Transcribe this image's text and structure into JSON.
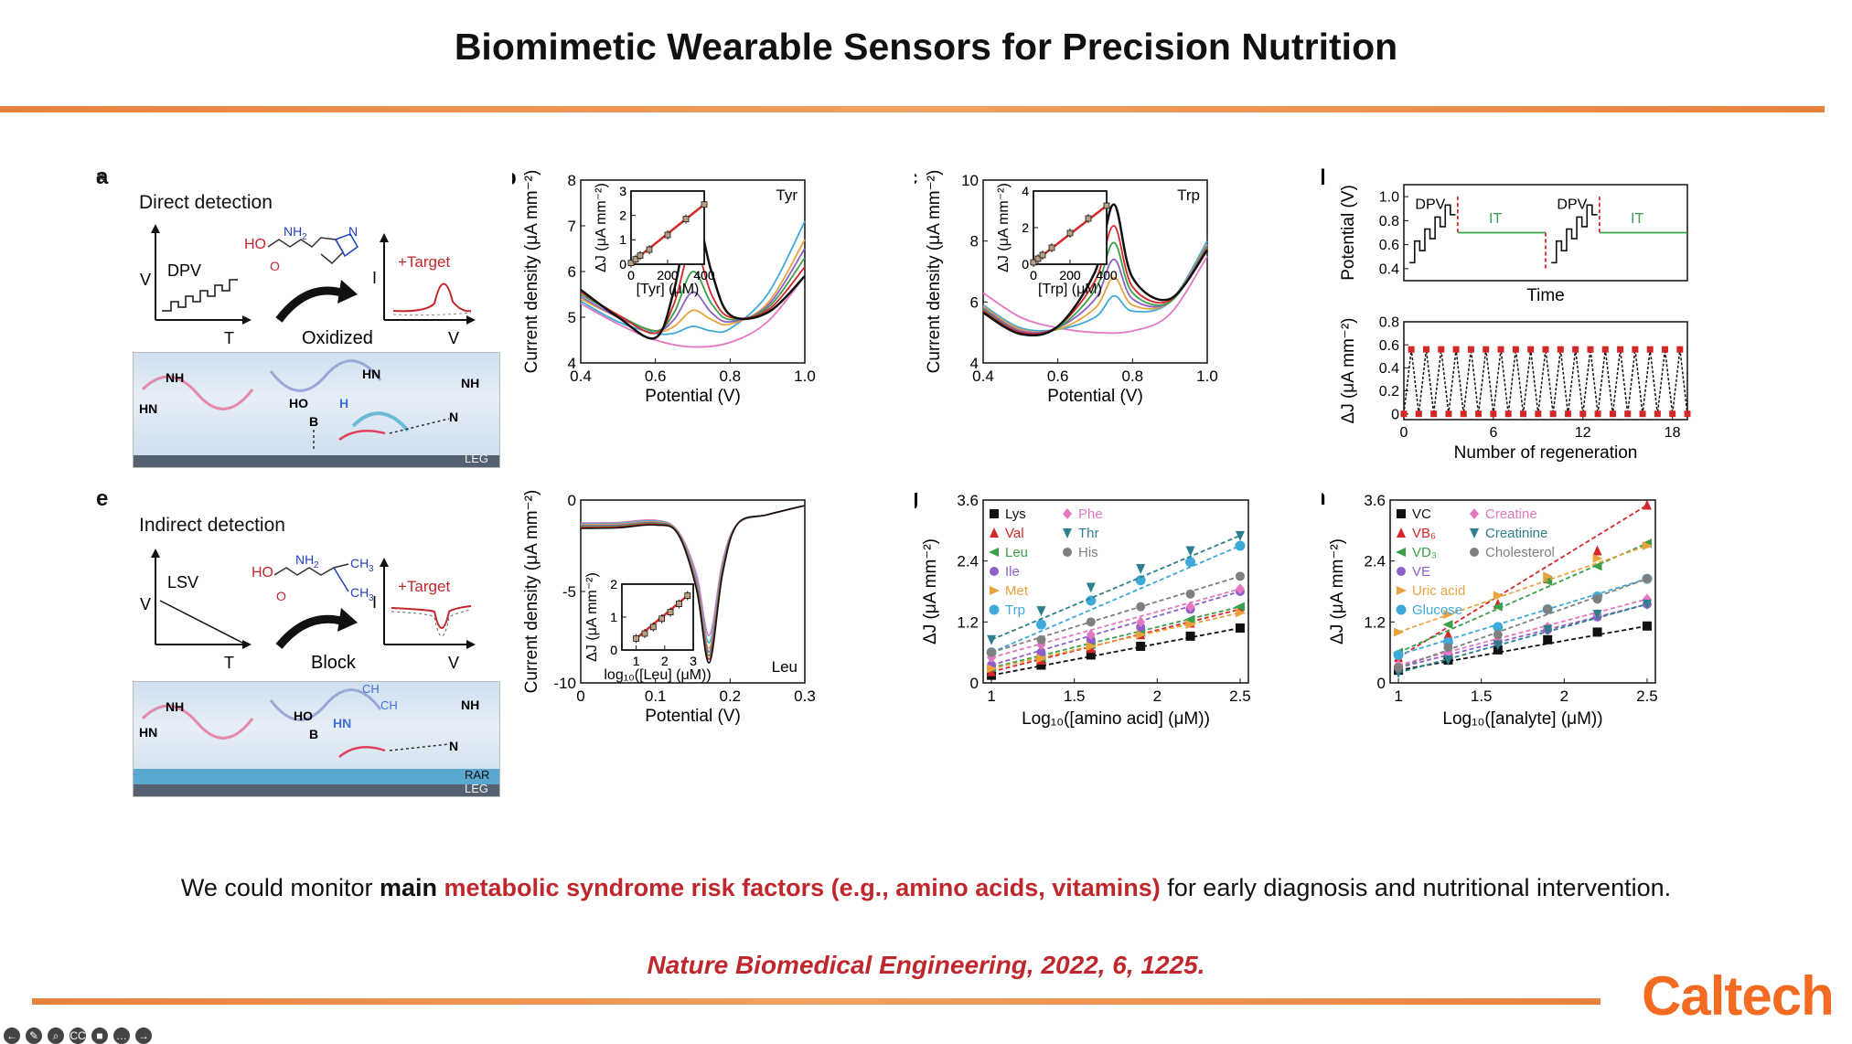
{
  "slide": {
    "title": "Biomimetic Wearable Sensors for Precision Nutrition",
    "caption_pre": "We could monitor ",
    "caption_bold": "main",
    "caption_highlight": "metabolic syndrome risk factors (e.g., amino acids, vitamins)",
    "caption_post": " for early diagnosis and nutritional intervention.",
    "citation": "Nature Biomedical Engineering, 2022, 6, 1225.",
    "logo": "Caltech",
    "colors": {
      "accent_orange": "#e8823a",
      "highlight_red": "#c0272d",
      "logo_orange": "#f26b21"
    }
  },
  "panels": {
    "a": {
      "label": "a",
      "heading": "Direct detection",
      "technique": "DPV",
      "axis_v": "V",
      "axis_t": "T",
      "axis_i": "I",
      "axis_v2": "V",
      "target": "+Target",
      "action": "Oxidized",
      "mol_nh2": "NH",
      "mol_nh2_sub": "2",
      "mol_ho": "HO",
      "mol_o": "O",
      "mol_n": "N",
      "rec_nh": "NH",
      "rec_hn": "HN",
      "rec_hn2": "HN",
      "rec_ho": "HO",
      "rec_b": "B",
      "rec_h": "H",
      "rec_n": "N",
      "substrate": "LEG"
    },
    "e": {
      "label": "e",
      "heading": "Indirect detection",
      "technique": "LSV",
      "axis_v": "V",
      "axis_t": "T",
      "axis_i": "I",
      "axis_v2": "V",
      "target": "+Target",
      "action": "Block",
      "mol_nh2": "NH",
      "mol_nh2_sub": "2",
      "mol_ho": "HO",
      "mol_o": "O",
      "mol_ch3a": "CH",
      "mol_ch3b": "CH",
      "mol_sub3": "3",
      "rec_nh": "NH",
      "rec_hn": "HN",
      "rec_hn2": "HN",
      "rec_ho": "HO",
      "rec_b": "B",
      "rec_n": "N",
      "rec_ch3": "CH",
      "rec_ch3b": "CH",
      "substrate_1": "RAR",
      "substrate_2": "LEG"
    }
  },
  "chart_data": [
    {
      "id": "b",
      "type": "line",
      "label": "b",
      "tag": "Tyr",
      "xlabel": "Potential (V)",
      "ylabel": "Current density (μA mm⁻²)",
      "xlim": [
        0.4,
        1.0
      ],
      "ylim": [
        4,
        8
      ],
      "xticks": [
        "0.4",
        "0.6",
        "0.8",
        "1.0"
      ],
      "yticks": [
        "4",
        "5",
        "6",
        "7",
        "8"
      ],
      "series": [
        {
          "color": "#e377c2",
          "x": [
            0.4,
            0.5,
            0.6,
            0.7,
            0.8,
            0.9,
            1.0
          ],
          "y": [
            5.3,
            4.85,
            4.5,
            4.35,
            4.45,
            4.9,
            5.9
          ]
        },
        {
          "color": "#3fa9d8",
          "x": [
            0.4,
            0.5,
            0.6,
            0.65,
            0.7,
            0.75,
            0.8,
            0.9,
            1.0
          ],
          "y": [
            5.35,
            4.9,
            4.65,
            4.65,
            4.8,
            4.7,
            4.75,
            5.5,
            7.1
          ]
        },
        {
          "color": "#e8a33d",
          "x": [
            0.4,
            0.5,
            0.6,
            0.65,
            0.7,
            0.75,
            0.8,
            0.9,
            1.0
          ],
          "y": [
            5.4,
            5.0,
            4.7,
            4.8,
            5.15,
            4.95,
            4.85,
            5.3,
            6.7
          ]
        },
        {
          "color": "#8e5fc7",
          "x": [
            0.4,
            0.5,
            0.6,
            0.65,
            0.7,
            0.75,
            0.8,
            0.9,
            1.0
          ],
          "y": [
            5.45,
            5.0,
            4.7,
            4.95,
            5.55,
            5.1,
            4.9,
            5.25,
            6.5
          ]
        },
        {
          "color": "#3aa04a",
          "x": [
            0.4,
            0.5,
            0.6,
            0.65,
            0.7,
            0.75,
            0.8,
            0.9,
            1.0
          ],
          "y": [
            5.5,
            5.05,
            4.7,
            5.1,
            6.0,
            5.3,
            4.95,
            5.2,
            6.3
          ]
        },
        {
          "color": "#d62728",
          "x": [
            0.4,
            0.5,
            0.6,
            0.65,
            0.7,
            0.75,
            0.8,
            0.9,
            1.0
          ],
          "y": [
            5.55,
            5.05,
            4.65,
            5.3,
            6.6,
            5.5,
            5.0,
            5.15,
            6.1
          ]
        },
        {
          "color": "#111111",
          "x": [
            0.4,
            0.5,
            0.6,
            0.65,
            0.7,
            0.75,
            0.8,
            0.9,
            1.0
          ],
          "y": [
            5.6,
            5.0,
            4.55,
            5.6,
            7.4,
            6.0,
            5.05,
            5.1,
            5.9
          ]
        }
      ],
      "inset": {
        "xlabel": "[Tyr] (μM)",
        "ylabel": "ΔJ (μA mm⁻²)",
        "xlim": [
          0,
          400
        ],
        "ylim": [
          0,
          3
        ],
        "xticks": [
          "0",
          "200",
          "400"
        ],
        "yticks": [
          "0",
          "1",
          "2",
          "3"
        ],
        "x": [
          0,
          25,
          50,
          100,
          200,
          300,
          400
        ],
        "y": [
          0.05,
          0.2,
          0.35,
          0.6,
          1.2,
          1.85,
          2.45
        ]
      }
    },
    {
      "id": "c",
      "type": "line",
      "label": "c",
      "tag": "Trp",
      "xlabel": "Potential (V)",
      "ylabel": "Current density (μA mm⁻²)",
      "xlim": [
        0.4,
        1.0
      ],
      "ylim": [
        4,
        10
      ],
      "xticks": [
        "0.4",
        "0.6",
        "0.8",
        "1.0"
      ],
      "yticks": [
        "4",
        "6",
        "8",
        "10"
      ],
      "series": [
        {
          "color": "#e377c2",
          "x": [
            0.4,
            0.5,
            0.6,
            0.7,
            0.8,
            0.9,
            1.0
          ],
          "y": [
            6.3,
            5.5,
            5.15,
            5.0,
            5.05,
            5.6,
            7.5
          ]
        },
        {
          "color": "#3fa9d8",
          "x": [
            0.4,
            0.5,
            0.6,
            0.7,
            0.75,
            0.8,
            0.9,
            1.0
          ],
          "y": [
            5.9,
            5.15,
            5.1,
            5.5,
            6.2,
            5.7,
            6.0,
            8.0
          ]
        },
        {
          "color": "#e8a33d",
          "x": [
            0.4,
            0.5,
            0.6,
            0.7,
            0.75,
            0.8,
            0.9,
            1.0
          ],
          "y": [
            5.85,
            5.1,
            5.1,
            5.8,
            6.8,
            5.9,
            6.0,
            7.9
          ]
        },
        {
          "color": "#8e5fc7",
          "x": [
            0.4,
            0.5,
            0.6,
            0.7,
            0.75,
            0.8,
            0.9,
            1.0
          ],
          "y": [
            5.8,
            5.05,
            5.15,
            6.1,
            7.4,
            6.1,
            6.0,
            7.85
          ]
        },
        {
          "color": "#3aa04a",
          "x": [
            0.4,
            0.5,
            0.6,
            0.7,
            0.75,
            0.8,
            0.9,
            1.0
          ],
          "y": [
            5.75,
            5.0,
            5.15,
            6.4,
            7.95,
            6.3,
            6.0,
            7.8
          ]
        },
        {
          "color": "#d62728",
          "x": [
            0.4,
            0.5,
            0.6,
            0.7,
            0.75,
            0.8,
            0.9,
            1.0
          ],
          "y": [
            5.7,
            5.0,
            5.2,
            6.7,
            8.5,
            6.5,
            6.05,
            7.75
          ]
        },
        {
          "color": "#111111",
          "x": [
            0.4,
            0.5,
            0.6,
            0.7,
            0.75,
            0.8,
            0.9,
            1.0
          ],
          "y": [
            5.65,
            4.95,
            5.2,
            7.0,
            9.2,
            6.8,
            6.1,
            7.7
          ]
        }
      ],
      "inset": {
        "xlabel": "[Trp] (μM)",
        "ylabel": "ΔJ (μA mm⁻²)",
        "xlim": [
          0,
          400
        ],
        "ylim": [
          0,
          4
        ],
        "xticks": [
          "0",
          "200",
          "400"
        ],
        "yticks": [
          "0",
          "2",
          "4"
        ],
        "x": [
          0,
          25,
          50,
          100,
          200,
          300,
          400
        ],
        "y": [
          0.1,
          0.3,
          0.5,
          0.9,
          1.7,
          2.5,
          3.2
        ]
      }
    },
    {
      "id": "d_top",
      "type": "line",
      "label": "d",
      "xlabel": "Time",
      "ylabel": "Potential (V)",
      "ylim": [
        0.3,
        1.1
      ],
      "yticks": [
        "0.4",
        "0.6",
        "0.8",
        "1.0"
      ],
      "annotations": [
        "DPV",
        "IT",
        "DPV",
        "IT"
      ]
    },
    {
      "id": "d_bottom",
      "type": "scatter",
      "xlabel": "Number of regeneration",
      "ylabel": "ΔJ (μA mm⁻²)",
      "xlim": [
        0,
        19
      ],
      "ylim": [
        -0.05,
        0.8
      ],
      "xticks": [
        "0",
        "6",
        "12",
        "18"
      ],
      "yticks": [
        "0",
        "0.2",
        "0.4",
        "0.6",
        "0.8"
      ],
      "high": 0.56,
      "low": 0.0,
      "cycles": 19
    },
    {
      "id": "f",
      "type": "line",
      "label": "f",
      "tag": "Leu",
      "xlabel": "Potential (V)",
      "ylabel": "Current density (μA mm⁻²)",
      "xlim": [
        0,
        0.3
      ],
      "ylim": [
        -10,
        0
      ],
      "xticks": [
        "0",
        "0.1",
        "0.2",
        "0.3"
      ],
      "yticks": [
        "-10",
        "-5",
        "0"
      ],
      "series": [
        {
          "color": "#e377c2",
          "depth": -7.4,
          "start": -1.25
        },
        {
          "color": "#3fa9d8",
          "depth": -7.8,
          "start": -1.3
        },
        {
          "color": "#e8a33d",
          "depth": -8.1,
          "start": -1.35
        },
        {
          "color": "#8e5fc7",
          "depth": -8.3,
          "start": -1.4
        },
        {
          "color": "#3aa04a",
          "depth": -8.5,
          "start": -1.45
        },
        {
          "color": "#d62728",
          "depth": -8.7,
          "start": -1.5
        },
        {
          "color": "#111111",
          "depth": -8.9,
          "start": -1.55
        }
      ],
      "inset": {
        "xlabel": "log₁₀([Leu] (μM))",
        "ylabel": "ΔJ (μA mm⁻²)",
        "xlim": [
          0.5,
          3
        ],
        "ylim": [
          0,
          2
        ],
        "xticks": [
          "1",
          "2",
          "3"
        ],
        "yticks": [
          "0",
          "1",
          "2"
        ],
        "x": [
          1,
          1.3,
          1.6,
          1.9,
          2.2,
          2.5,
          2.8
        ],
        "y": [
          0.35,
          0.5,
          0.7,
          0.95,
          1.15,
          1.4,
          1.65
        ]
      }
    },
    {
      "id": "g",
      "type": "scatter",
      "label": "g",
      "xlabel": "Log₁₀([amino acid] (μM))",
      "ylabel": "ΔJ (μA mm⁻²)",
      "xlim": [
        0.95,
        2.55
      ],
      "ylim": [
        0,
        3.6
      ],
      "xticks": [
        "1",
        "1.5",
        "2",
        "2.5"
      ],
      "yticks": [
        "0",
        "1.2",
        "2.4",
        "3.6"
      ],
      "x": [
        1,
        1.3,
        1.6,
        1.9,
        2.2,
        2.5
      ],
      "series": [
        {
          "name": "Lys",
          "color": "#111111",
          "marker": "square",
          "y": [
            0.15,
            0.35,
            0.55,
            0.72,
            0.92,
            1.08
          ]
        },
        {
          "name": "Val",
          "color": "#d62728",
          "marker": "tri-up",
          "y": [
            0.22,
            0.45,
            0.68,
            0.95,
            1.18,
            1.45
          ]
        },
        {
          "name": "Leu",
          "color": "#3aa04a",
          "marker": "tri-left",
          "y": [
            0.3,
            0.5,
            0.75,
            1.0,
            1.25,
            1.5
          ]
        },
        {
          "name": "Ile",
          "color": "#8e5fc7",
          "marker": "circle",
          "y": [
            0.35,
            0.6,
            0.85,
            1.1,
            1.45,
            1.8
          ]
        },
        {
          "name": "Met",
          "color": "#e8a33d",
          "marker": "tri-right",
          "y": [
            0.28,
            0.48,
            0.72,
            0.95,
            1.15,
            1.38
          ]
        },
        {
          "name": "Trp",
          "color": "#3fa9d8",
          "marker": "hexagon",
          "y": [
            0.6,
            1.15,
            1.62,
            2.02,
            2.38,
            2.7
          ]
        },
        {
          "name": "Phe",
          "color": "#e377c2",
          "marker": "diamond",
          "y": [
            0.5,
            0.75,
            0.95,
            1.2,
            1.5,
            1.85
          ]
        },
        {
          "name": "Thr",
          "color": "#2c7f8c",
          "marker": "tri-down",
          "y": [
            0.85,
            1.42,
            1.88,
            2.25,
            2.6,
            2.9
          ]
        },
        {
          "name": "His",
          "color": "#7f7f7f",
          "marker": "circle",
          "y": [
            0.6,
            0.85,
            1.2,
            1.5,
            1.75,
            2.1
          ]
        }
      ]
    },
    {
      "id": "h",
      "type": "scatter",
      "label": "h",
      "xlabel": "Log₁₀([analyte] (μM))",
      "ylabel": "ΔJ (μA mm⁻²)",
      "xlim": [
        0.95,
        2.55
      ],
      "ylim": [
        0,
        3.6
      ],
      "xticks": [
        "1",
        "1.5",
        "2",
        "2.5"
      ],
      "yticks": [
        "0",
        "1.2",
        "2.4",
        "3.6"
      ],
      "x": [
        1,
        1.3,
        1.6,
        1.9,
        2.2,
        2.5
      ],
      "series": [
        {
          "name": "VC",
          "color": "#111111",
          "marker": "square",
          "y": [
            0.25,
            0.45,
            0.65,
            0.85,
            1.0,
            1.12
          ]
        },
        {
          "name": "VB₆",
          "color": "#d62728",
          "marker": "tri-up",
          "y": [
            0.5,
            0.95,
            1.55,
            2.05,
            2.6,
            3.5
          ]
        },
        {
          "name": "VD₃",
          "color": "#3aa04a",
          "marker": "tri-left",
          "y": [
            0.6,
            1.15,
            1.5,
            2.0,
            2.3,
            2.75
          ]
        },
        {
          "name": "VE",
          "color": "#8e5fc7",
          "marker": "circle",
          "y": [
            0.3,
            0.55,
            0.8,
            1.05,
            1.3,
            1.55
          ]
        },
        {
          "name": "Uric acid",
          "color": "#e8a33d",
          "marker": "tri-right",
          "y": [
            1.0,
            1.35,
            1.72,
            2.1,
            2.45,
            2.7
          ]
        },
        {
          "name": "Glucose",
          "color": "#3fa9d8",
          "marker": "hexagon",
          "y": [
            0.55,
            0.8,
            1.1,
            1.45,
            1.7,
            2.05
          ]
        },
        {
          "name": "Creatine",
          "color": "#e377c2",
          "marker": "diamond",
          "y": [
            0.35,
            0.6,
            0.85,
            1.1,
            1.35,
            1.65
          ]
        },
        {
          "name": "Creatinine",
          "color": "#2c7f8c",
          "marker": "tri-down",
          "y": [
            0.2,
            0.45,
            0.75,
            1.05,
            1.35,
            1.55
          ]
        },
        {
          "name": "Cholesterol",
          "color": "#7f7f7f",
          "marker": "circle",
          "y": [
            0.3,
            0.7,
            0.95,
            1.45,
            1.65,
            2.05
          ]
        }
      ]
    }
  ],
  "toolbar": [
    {
      "name": "back-icon",
      "glyph": "←"
    },
    {
      "name": "pen-icon",
      "glyph": "✎"
    },
    {
      "name": "zoom-icon",
      "glyph": "⌕"
    },
    {
      "name": "captions-icon",
      "glyph": "CC"
    },
    {
      "name": "camera-icon",
      "glyph": "■"
    },
    {
      "name": "more-icon",
      "glyph": "…"
    },
    {
      "name": "forward-icon",
      "glyph": "→"
    }
  ]
}
